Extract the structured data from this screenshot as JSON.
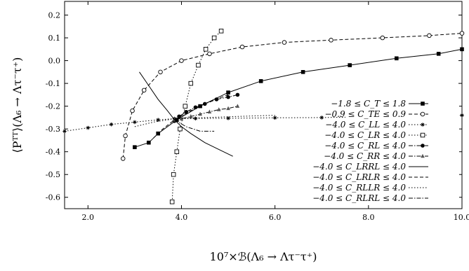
{
  "chart_data": {
    "type": "scatter",
    "title": "",
    "xlabel": "10⁷×ℬ(Λ₆ → Λτ⁻τ⁺)",
    "ylabel": "⟨Pᵀᵀ⟩(Λ₆ → Λτ⁻τ⁺)",
    "xlim": [
      1.5,
      10.0
    ],
    "ylim": [
      -0.65,
      0.26
    ],
    "xticks": [
      "2.0",
      "4.0",
      "6.0",
      "8.0",
      "10.0"
    ],
    "yticks": [
      "0.2",
      "0.1",
      "0.0",
      "-0.1",
      "-0.2",
      "-0.3",
      "-0.4",
      "-0.5",
      "-0.6"
    ],
    "grid": false,
    "legend_position": "right",
    "series": [
      {
        "name": "−1.8 ≤ C_T ≤ 1.8",
        "style": "solid",
        "marker": "filled-square",
        "x": [
          3.0,
          3.3,
          3.5,
          3.9,
          4.4,
          5.0,
          5.7,
          6.6,
          7.6,
          8.6,
          9.5,
          10.0
        ],
        "y": [
          -0.38,
          -0.36,
          -0.32,
          -0.26,
          -0.2,
          -0.14,
          -0.09,
          -0.05,
          -0.02,
          0.01,
          0.03,
          0.05
        ]
      },
      {
        "name": "−0.9 ≤ C_TE ≤ 0.9",
        "style": "dashed",
        "marker": "open-circle",
        "x": [
          2.75,
          2.8,
          2.95,
          3.2,
          3.55,
          4.0,
          4.6,
          5.3,
          6.2,
          7.2,
          8.3,
          9.3,
          10.0
        ],
        "y": [
          -0.43,
          -0.33,
          -0.22,
          -0.13,
          -0.05,
          0.0,
          0.03,
          0.06,
          0.08,
          0.09,
          0.1,
          0.11,
          0.12
        ]
      },
      {
        "name": "−4.0 ≤ C_LL ≤ 4.0",
        "style": "dotted",
        "marker": "asterisk",
        "x": [
          1.5,
          2.0,
          2.5,
          3.0,
          3.5,
          3.85,
          4.3,
          5.0,
          6.0,
          7.0,
          8.0,
          9.0,
          10.0
        ],
        "y": [
          -0.31,
          -0.295,
          -0.28,
          -0.27,
          -0.26,
          -0.255,
          -0.254,
          -0.253,
          -0.251,
          -0.25,
          -0.247,
          -0.245,
          -0.24
        ]
      },
      {
        "name": "−4.0 ≤ C_LR ≤ 4.0",
        "style": "dotted",
        "marker": "open-square",
        "x": [
          3.8,
          3.83,
          3.9,
          3.97,
          4.08,
          4.2,
          4.36,
          4.52,
          4.7,
          4.85
        ],
        "y": [
          -0.62,
          -0.5,
          -0.4,
          -0.3,
          -0.2,
          -0.1,
          -0.02,
          0.05,
          0.1,
          0.13
        ]
      },
      {
        "name": "−4.0 ≤ C_RL ≤ 4.0",
        "style": "dashdot",
        "marker": "filled-circle",
        "x": [
          3.85,
          3.95,
          4.1,
          4.3,
          4.5,
          4.75,
          5.0,
          5.2
        ],
        "y": [
          -0.265,
          -0.245,
          -0.225,
          -0.205,
          -0.19,
          -0.17,
          -0.16,
          -0.15
        ]
      },
      {
        "name": "−4.0 ≤ C_RR ≤ 4.0",
        "style": "dashdot",
        "marker": "filled-triangle",
        "x": [
          3.85,
          4.0,
          4.2,
          4.4,
          4.6,
          4.8,
          5.0,
          5.2
        ],
        "y": [
          -0.26,
          -0.255,
          -0.245,
          -0.235,
          -0.225,
          -0.215,
          -0.21,
          -0.2
        ]
      },
      {
        "name": "−4.0 ≤ C_LRRL ≤ 4.0",
        "style": "solid",
        "marker": "none",
        "x": [
          3.1,
          3.3,
          3.5,
          3.7,
          3.85,
          4.0,
          4.2,
          4.5,
          4.8,
          5.1
        ],
        "y": [
          -0.05,
          -0.11,
          -0.17,
          -0.22,
          -0.26,
          -0.29,
          -0.32,
          -0.36,
          -0.39,
          -0.42
        ]
      },
      {
        "name": "−4.0 ≤ C_LRLR ≤ 4.0",
        "style": "dashed",
        "marker": "none",
        "x": [
          3.4,
          3.6,
          3.85,
          4.2,
          4.6,
          5.0
        ],
        "y": [
          -0.34,
          -0.3,
          -0.26,
          -0.22,
          -0.18,
          -0.15
        ]
      },
      {
        "name": "−4.0 ≤ C_RLLR ≤ 4.0",
        "style": "dotted",
        "marker": "none",
        "x": [
          3.0,
          3.4,
          3.85,
          4.5,
          5.2,
          6.0
        ],
        "y": [
          -0.29,
          -0.27,
          -0.255,
          -0.25,
          -0.245,
          -0.24
        ]
      },
      {
        "name": "−4.0 ≤ C_RLRL ≤ 4.0",
        "style": "dashdot",
        "marker": "none",
        "x": [
          3.85,
          4.1,
          4.4,
          4.7
        ],
        "y": [
          -0.26,
          -0.29,
          -0.31,
          -0.31
        ]
      }
    ],
    "legend": [
      "−1.8 ≤ C_T ≤ 1.8",
      "−0.9 ≤ C_TE ≤ 0.9",
      "−4.0 ≤ C_LL ≤ 4.0",
      "−4.0 ≤ C_LR ≤ 4.0",
      "−4.0 ≤ C_RL ≤ 4.0",
      "−4.0 ≤ C_RR ≤ 4.0",
      "−4.0 ≤ C_LRRL ≤ 4.0",
      "−4.0 ≤ C_LRLR ≤ 4.0",
      "−4.0 ≤ C_RLLR ≤ 4.0",
      "−4.0 ≤ C_RLRL ≤ 4.0"
    ]
  }
}
